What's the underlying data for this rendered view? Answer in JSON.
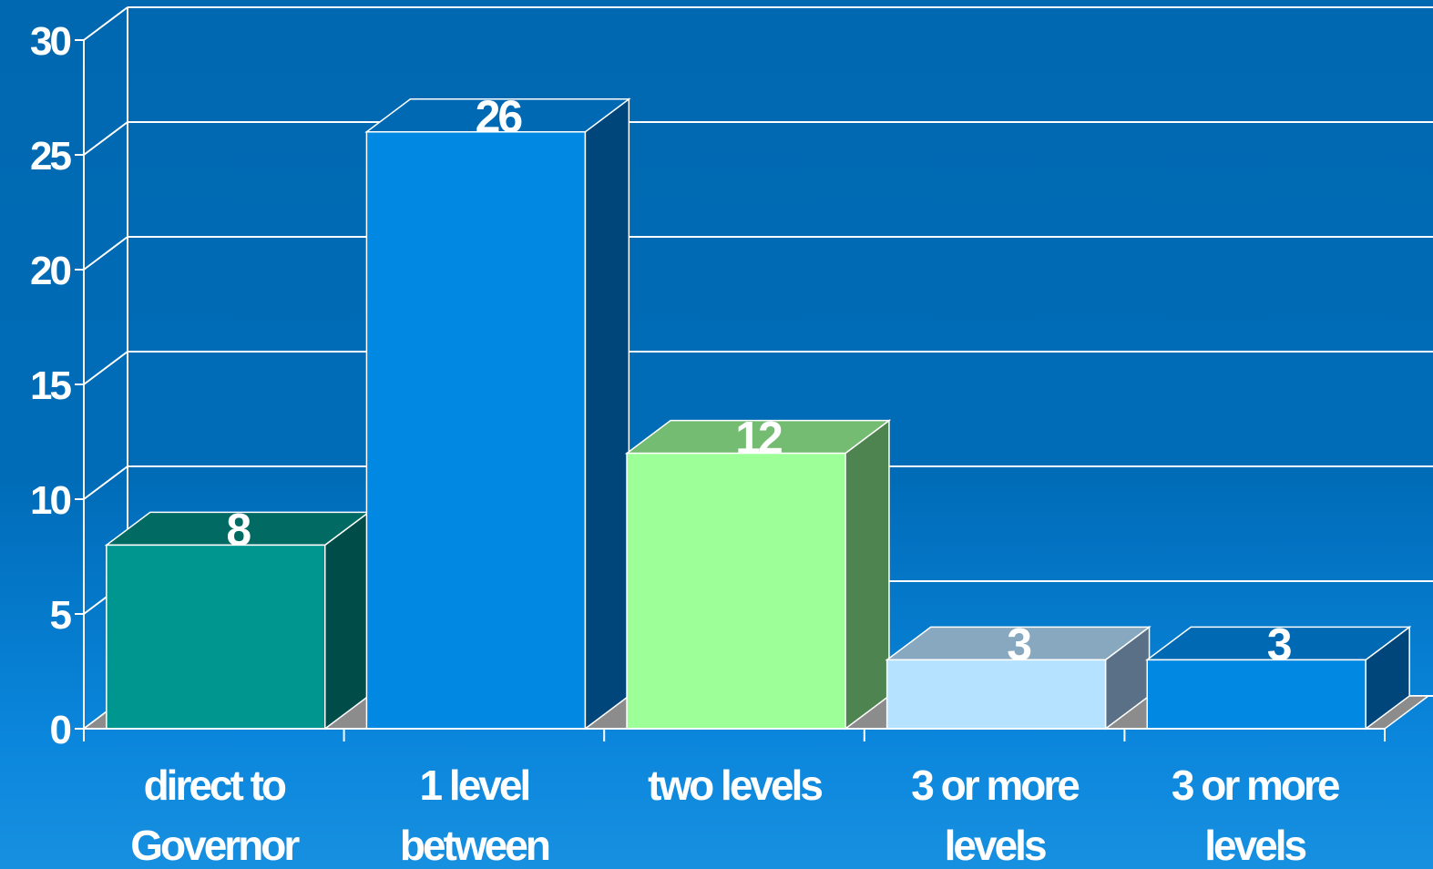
{
  "chart_data": {
    "type": "bar",
    "style": "3d-column",
    "categories": [
      [
        "direct to",
        "Governor"
      ],
      [
        "1 level",
        "between"
      ],
      [
        "two levels"
      ],
      [
        "3 or more",
        "levels"
      ],
      [
        "3 or more",
        "levels"
      ]
    ],
    "values": [
      8,
      26,
      12,
      3,
      3
    ],
    "ylim": [
      0,
      30
    ],
    "yticks": [
      "0",
      "5",
      "10",
      "15",
      "20",
      "25",
      "30"
    ],
    "ytick_values": [
      0,
      5,
      10,
      15,
      20,
      25,
      30
    ],
    "grid": true,
    "data_labels": true,
    "title": "",
    "xlabel": "",
    "ylabel": "",
    "colors": [
      {
        "front": "#009690",
        "top": "#006a63",
        "side": "#004c48"
      },
      {
        "front": "#0088e2",
        "top": "#0069b4",
        "side": "#00467a"
      },
      {
        "front": "#9cff98",
        "top": "#74bc72",
        "side": "#4e8450"
      },
      {
        "front": "#b4e2ff",
        "top": "#88a8c0",
        "side": "#5a7086"
      },
      {
        "front": "#0088e2",
        "top": "#0069b4",
        "side": "#00467a"
      }
    ],
    "floor_color": "#8c8c8c",
    "grid_color": "#ffffff",
    "background_color": "#006ab4"
  }
}
